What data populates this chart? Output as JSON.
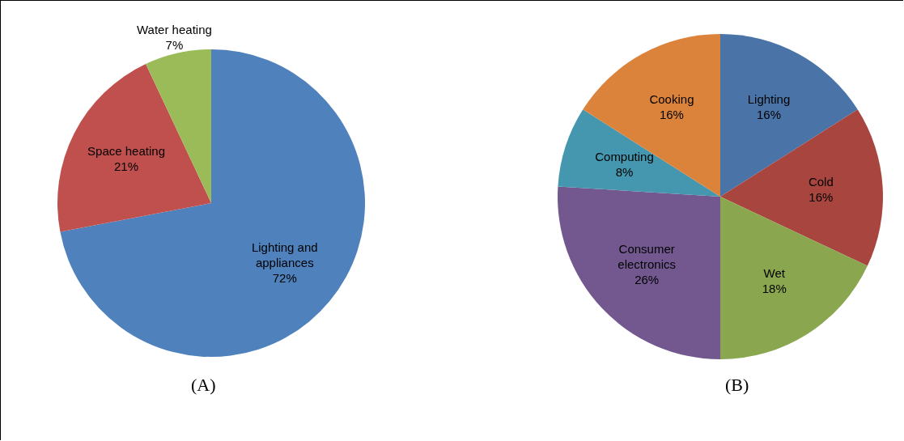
{
  "chart_data": [
    {
      "type": "pie",
      "title": "(A)",
      "categories": [
        "Lighting and appliances",
        "Space heating",
        "Water heating"
      ],
      "values": [
        72,
        21,
        7
      ],
      "colors": [
        "#4f81bd",
        "#c0504d",
        "#9bbb59"
      ],
      "value_labels": [
        "72%",
        "21%",
        "7%"
      ]
    },
    {
      "type": "pie",
      "title": "(B)",
      "categories": [
        "Lighting",
        "Cold",
        "Wet",
        "Consumer electronics",
        "Computing",
        "Cooking"
      ],
      "values": [
        16,
        16,
        18,
        26,
        8,
        16
      ],
      "colors": [
        "#4a73a8",
        "#a8453f",
        "#8aa64e",
        "#72588f",
        "#4497ae",
        "#dc833b"
      ],
      "value_labels": [
        "16%",
        "16%",
        "18%",
        "26%",
        "8%",
        "16%"
      ]
    }
  ]
}
